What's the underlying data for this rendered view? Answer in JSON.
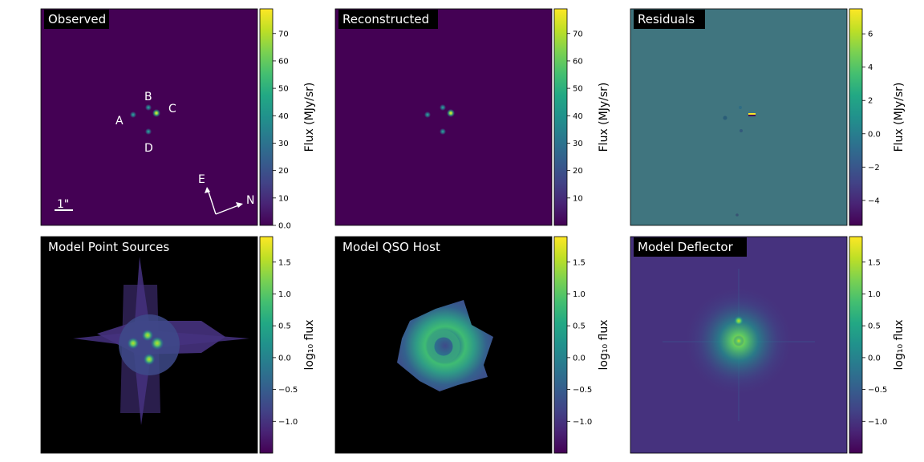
{
  "colors": {
    "viridis": [
      "#440154",
      "#482475",
      "#414487",
      "#355f8d",
      "#2a788e",
      "#21918c",
      "#22a884",
      "#44bf70",
      "#7ad151",
      "#bddf26",
      "#fde725"
    ],
    "observed_bg": "#440154",
    "residual_bg": "#40757f",
    "point_bg": "#000000",
    "deflector_bg": "#46327e",
    "title_box": "#000000",
    "title_text": "#ffffff"
  },
  "chart_data": [
    {
      "type": "heatmap",
      "title": "Observed",
      "colorbar": {
        "label": "Flux (MJy/sr)",
        "ticks": [
          0,
          10,
          20,
          30,
          40,
          50,
          60,
          70
        ],
        "range": [
          0,
          79
        ]
      },
      "sources": [
        {
          "name": "A",
          "value": 18
        },
        {
          "name": "B",
          "value": 22
        },
        {
          "name": "C",
          "value": 78
        },
        {
          "name": "D",
          "value": 20
        }
      ],
      "annotations": {
        "image_labels": [
          "A",
          "B",
          "C",
          "D"
        ],
        "scalebar_label": "1\"",
        "compass_east": "E",
        "compass_north": "N"
      }
    },
    {
      "type": "heatmap",
      "title": "Reconstructed",
      "colorbar": {
        "label": "Flux (MJy/sr)",
        "ticks": [
          10,
          20,
          30,
          40,
          50,
          60,
          70
        ],
        "range": [
          0,
          79
        ]
      },
      "sources": [
        {
          "name": "A",
          "value": 18
        },
        {
          "name": "B",
          "value": 22
        },
        {
          "name": "C",
          "value": 78
        },
        {
          "name": "D",
          "value": 20
        }
      ]
    },
    {
      "type": "heatmap",
      "title": "Residuals",
      "colorbar": {
        "label": "Flux (MJy/sr)",
        "ticks": [
          6,
          4,
          2,
          0,
          -2,
          -4
        ],
        "range": [
          -5.5,
          7.5
        ]
      }
    },
    {
      "type": "heatmap",
      "title": "Model Point Sources",
      "colorbar": {
        "label": "log₁₀ flux",
        "ticks": [
          1.5,
          1.0,
          0.5,
          0.0,
          -0.5,
          -1.0
        ],
        "range": [
          -1.5,
          1.9
        ]
      }
    },
    {
      "type": "heatmap",
      "title": "Model QSO Host",
      "colorbar": {
        "label": "log₁₀ flux",
        "ticks": [
          1.5,
          1.0,
          0.5,
          0.0,
          -0.5,
          -1.0
        ],
        "range": [
          -1.5,
          1.9
        ]
      }
    },
    {
      "type": "heatmap",
      "title": "Model Deflector",
      "colorbar": {
        "label": "log₁₀ flux",
        "ticks": [
          1.5,
          1.0,
          0.5,
          0.0,
          -0.5,
          -1.0
        ],
        "range": [
          -1.5,
          1.9
        ]
      }
    }
  ]
}
